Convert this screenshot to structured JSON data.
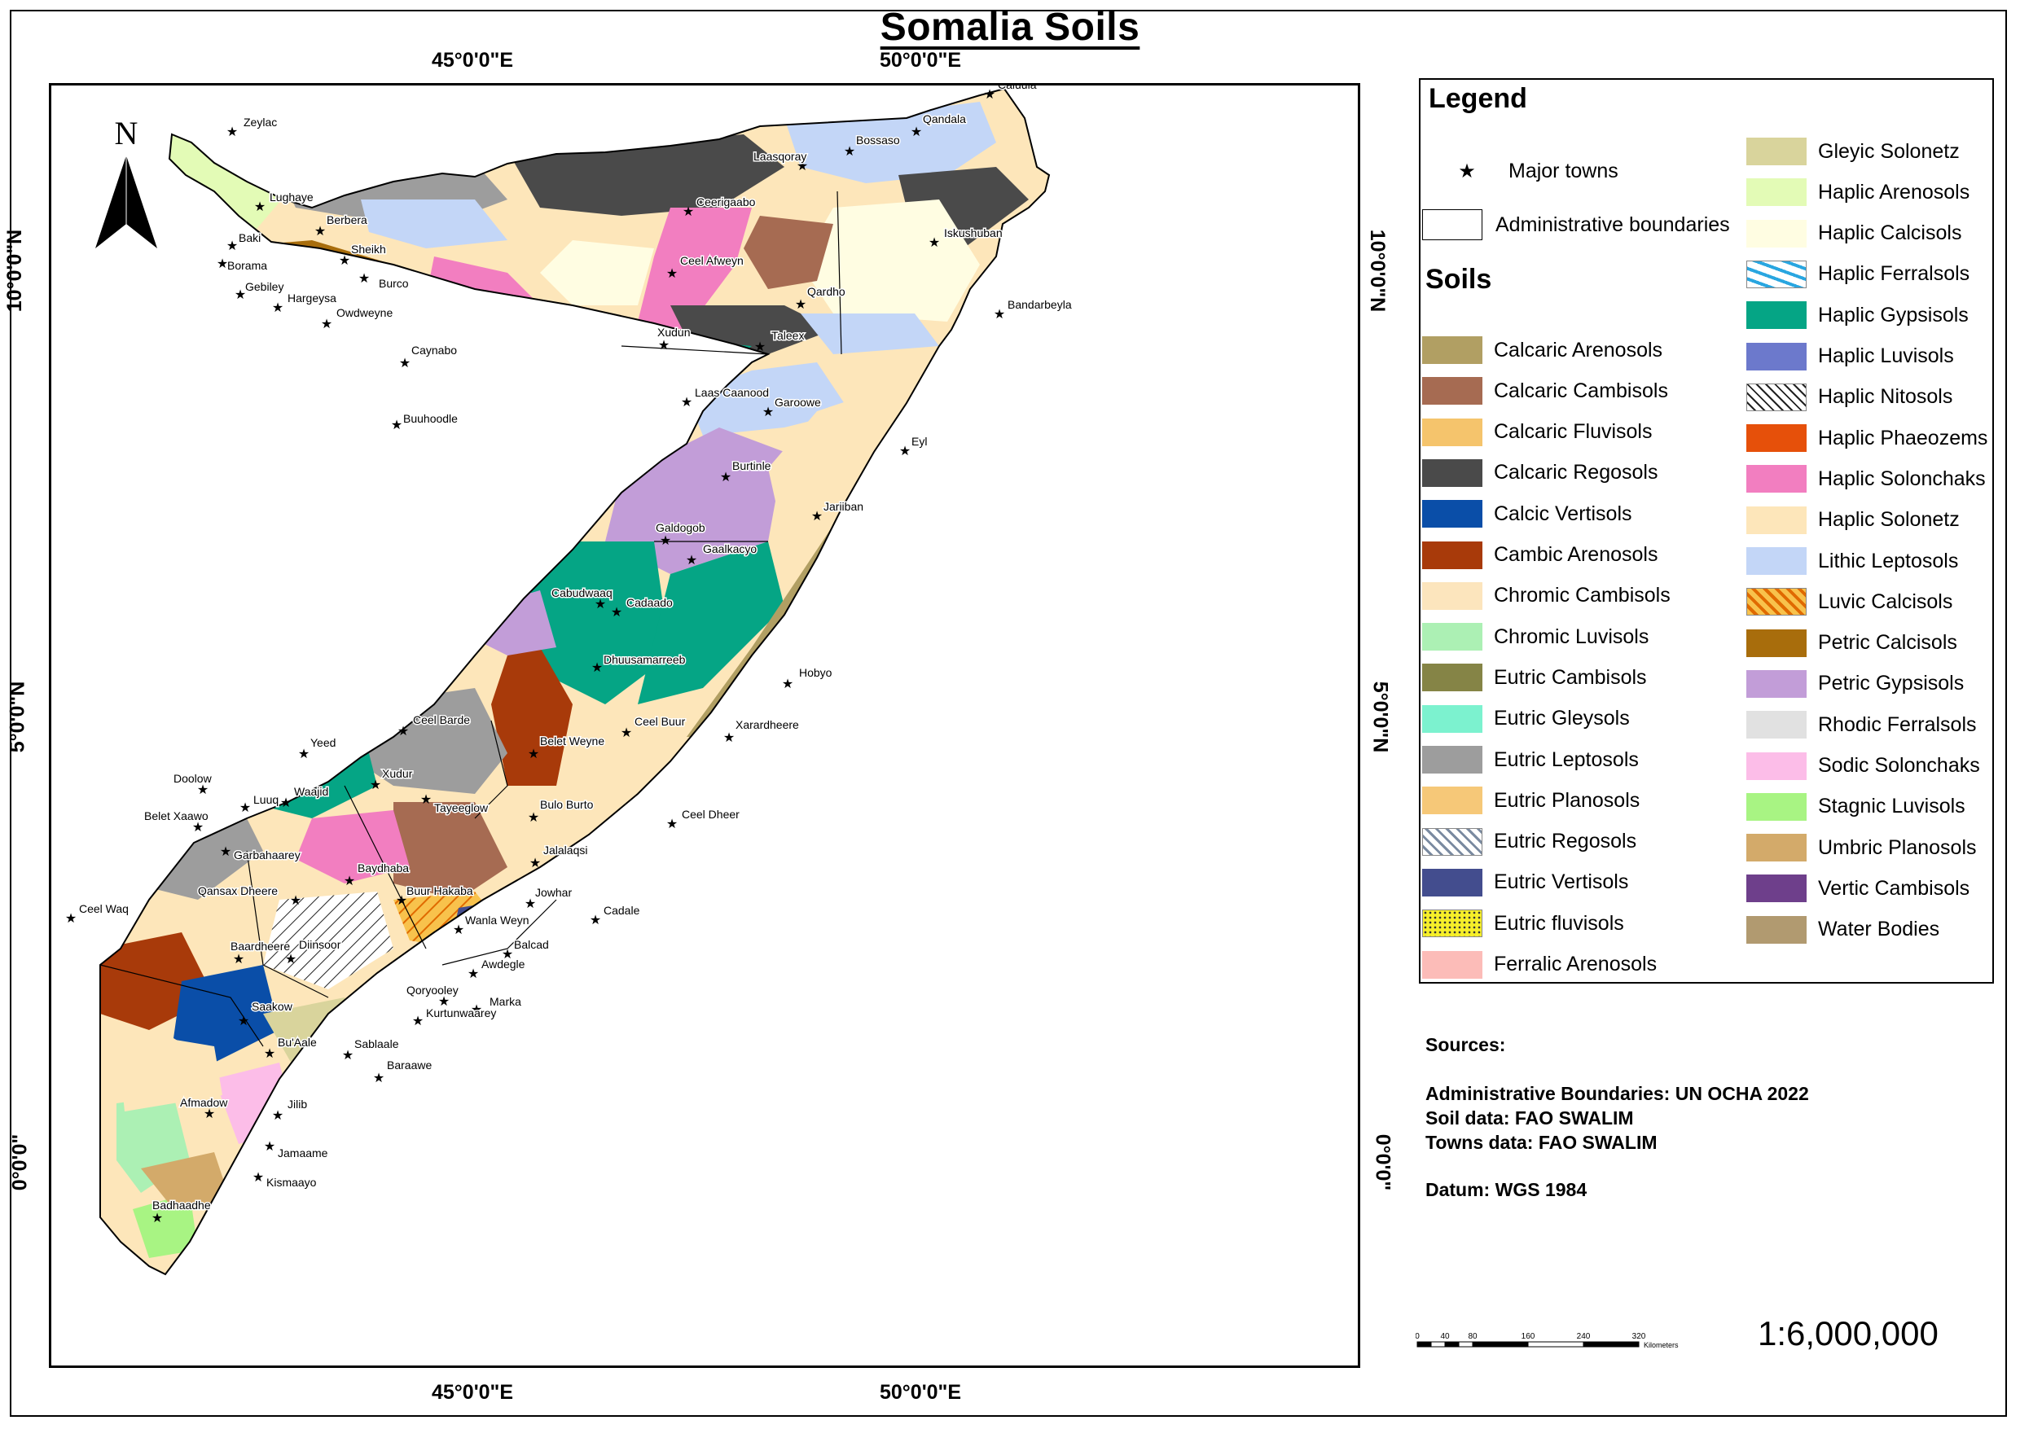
{
  "title": "Somalia Soils",
  "coords": {
    "top_45": "45°0'0\"E",
    "top_50": "50°0'0\"E",
    "bottom_45": "45°0'0\"E",
    "bottom_50": "50°0'0\"E",
    "left_10": "10°0'0\"N",
    "left_5": "5°0'0\"N",
    "left_0": "0°0'0\"",
    "right_10": "10°0'0\"N",
    "right_5": "5°0'0\"N",
    "right_0": "0°0'0\""
  },
  "north": "N",
  "legend": {
    "heading": "Legend",
    "towns_label": "Major towns",
    "admin_label": "Administrative boundaries",
    "soils_heading": "Soils",
    "soils_col1": [
      {
        "label": "Calcaric Arenosols",
        "color": "#b19f63"
      },
      {
        "label": "Calcaric Cambisols",
        "color": "#a66b52"
      },
      {
        "label": "Calcaric Fluvisols",
        "color": "#f5c46c"
      },
      {
        "label": "Calcaric Regosols",
        "color": "#4a4a4a"
      },
      {
        "label": "Calcic Vertisols",
        "color": "#0a4ea8"
      },
      {
        "label": "Cambic Arenosols",
        "color": "#a83a0a"
      },
      {
        "label": "Chromic Cambisols",
        "color": "#fce5bd"
      },
      {
        "label": "Chromic Luvisols",
        "color": "#acf0b4"
      },
      {
        "label": "Eutric Cambisols",
        "color": "#858446"
      },
      {
        "label": "Eutric Gleysols",
        "color": "#7cf2cf"
      },
      {
        "label": "Eutric Leptosols",
        "color": "#9d9d9d"
      },
      {
        "label": "Eutric Planosols",
        "color": "#f6c878"
      },
      {
        "label": "Eutric Regosols",
        "color": "#e6eaf0",
        "pattern": "hatch-grey"
      },
      {
        "label": "Eutric Vertisols",
        "color": "#434d8e"
      },
      {
        "label": "Eutric fluvisols",
        "color": "#f6ef2a",
        "pattern": "dots-yellow"
      },
      {
        "label": "Ferralic Arenosols",
        "color": "#fcbcb8"
      }
    ],
    "soils_col2": [
      {
        "label": "Gleyic Solonetz",
        "color": "#d9d49c"
      },
      {
        "label": "Haplic Arenosols",
        "color": "#e3fbb6"
      },
      {
        "label": "Haplic Calcisols",
        "color": "#fffde2"
      },
      {
        "label": "Haplic Ferralsols",
        "color": "#ffffff",
        "pattern": "blobs-blue"
      },
      {
        "label": "Haplic Gypsisols",
        "color": "#05a585"
      },
      {
        "label": "Haplic Luvisols",
        "color": "#6c79cc"
      },
      {
        "label": "Haplic Nitosols",
        "color": "#ffffff",
        "pattern": "hatch-black"
      },
      {
        "label": "Haplic Phaeozems",
        "color": "#e6500a"
      },
      {
        "label": "Haplic Solonchaks",
        "color": "#f27ec0"
      },
      {
        "label": "Haplic Solonetz",
        "color": "#fde6ba"
      },
      {
        "label": "Lithic Leptosols",
        "color": "#c3d6f7"
      },
      {
        "label": "Luvic Calcisols",
        "color": "#f8c24c",
        "pattern": "hatch-orange"
      },
      {
        "label": "Petric Calcisols",
        "color": "#a86d0c"
      },
      {
        "label": "Petric Gypsisols",
        "color": "#c29dd8"
      },
      {
        "label": "Rhodic Ferralsols",
        "color": "#e1e1e1"
      },
      {
        "label": "Sodic Solonchaks",
        "color": "#fcbde8"
      },
      {
        "label": "Stagnic Luvisols",
        "color": "#a8f483"
      },
      {
        "label": "Umbric Planosols",
        "color": "#d3aa6a"
      },
      {
        "label": "Vertic Cambisols",
        "color": "#6e3f8b"
      },
      {
        "label": "Water Bodies",
        "color": "#b19a70"
      }
    ]
  },
  "sources": {
    "heading": "Sources:",
    "admin": "Administrative Boundaries: UN OCHA 2022",
    "soil": "Soil data: FAO SWALIM",
    "towns": "Towns data: FAO SWALIM",
    "datum": "Datum: WGS 1984"
  },
  "scale": {
    "ticks": [
      "0",
      "40",
      "80",
      "160",
      "240",
      "320"
    ],
    "unit": "Kilometers",
    "ratio": "1:6,000,000"
  },
  "towns": [
    {
      "name": "Zeylac"
    },
    {
      "name": "Lughaye"
    },
    {
      "name": "Baki"
    },
    {
      "name": "Borama"
    },
    {
      "name": "Gebiley"
    },
    {
      "name": "Hargeysa"
    },
    {
      "name": "Berbera"
    },
    {
      "name": "Sheikh"
    },
    {
      "name": "Burco"
    },
    {
      "name": "Owdweyne"
    },
    {
      "name": "Caynabo"
    },
    {
      "name": "Buuhoodle"
    },
    {
      "name": "Ceerigaabo"
    },
    {
      "name": "Ceel Afweyn"
    },
    {
      "name": "Xudun"
    },
    {
      "name": "Taleex"
    },
    {
      "name": "Laas Caanood"
    },
    {
      "name": "Garoowe"
    },
    {
      "name": "Qardho"
    },
    {
      "name": "Laasqoray"
    },
    {
      "name": "Bossaso"
    },
    {
      "name": "Qandala"
    },
    {
      "name": "Caluula"
    },
    {
      "name": "Iskushuban"
    },
    {
      "name": "Bandarbeyla"
    },
    {
      "name": "Eyl"
    },
    {
      "name": "Burtinle"
    },
    {
      "name": "Jariiban"
    },
    {
      "name": "Galdogob"
    },
    {
      "name": "Gaalkacyo"
    },
    {
      "name": "Cabudwaaq"
    },
    {
      "name": "Cadaado"
    },
    {
      "name": "Dhuusamarreeb"
    },
    {
      "name": "Hobyo"
    },
    {
      "name": "Ceel Buur"
    },
    {
      "name": "Xarardheere"
    },
    {
      "name": "Ceel Barde"
    },
    {
      "name": "Yeed"
    },
    {
      "name": "Belet Weyne"
    },
    {
      "name": "Doolow"
    },
    {
      "name": "Xudur"
    },
    {
      "name": "Tayeeglow"
    },
    {
      "name": "Belet Xaawo"
    },
    {
      "name": "Luuq"
    },
    {
      "name": "Waajid"
    },
    {
      "name": "Bulo Burto"
    },
    {
      "name": "Ceel Dheer"
    },
    {
      "name": "Garbahaarey"
    },
    {
      "name": "Jalalaqsi"
    },
    {
      "name": "Baydhaba"
    },
    {
      "name": "Qansax Dheere"
    },
    {
      "name": "Buur Hakaba"
    },
    {
      "name": "Ceel Waq"
    },
    {
      "name": "Jowhar"
    },
    {
      "name": "Cadale"
    },
    {
      "name": "Wanla Weyn"
    },
    {
      "name": "Baardheere"
    },
    {
      "name": "Diinsoor"
    },
    {
      "name": "Balcad"
    },
    {
      "name": "Awdegle"
    },
    {
      "name": "Qoryooley"
    },
    {
      "name": "Marka"
    },
    {
      "name": "Saakow"
    },
    {
      "name": "Kurtunwaarey"
    },
    {
      "name": "Bu'Aale"
    },
    {
      "name": "Sablaale"
    },
    {
      "name": "Baraawe"
    },
    {
      "name": "Afmadow"
    },
    {
      "name": "Jilib"
    },
    {
      "name": "Jamaame"
    },
    {
      "name": "Kismaayo"
    },
    {
      "name": "Badhaadhe"
    }
  ]
}
